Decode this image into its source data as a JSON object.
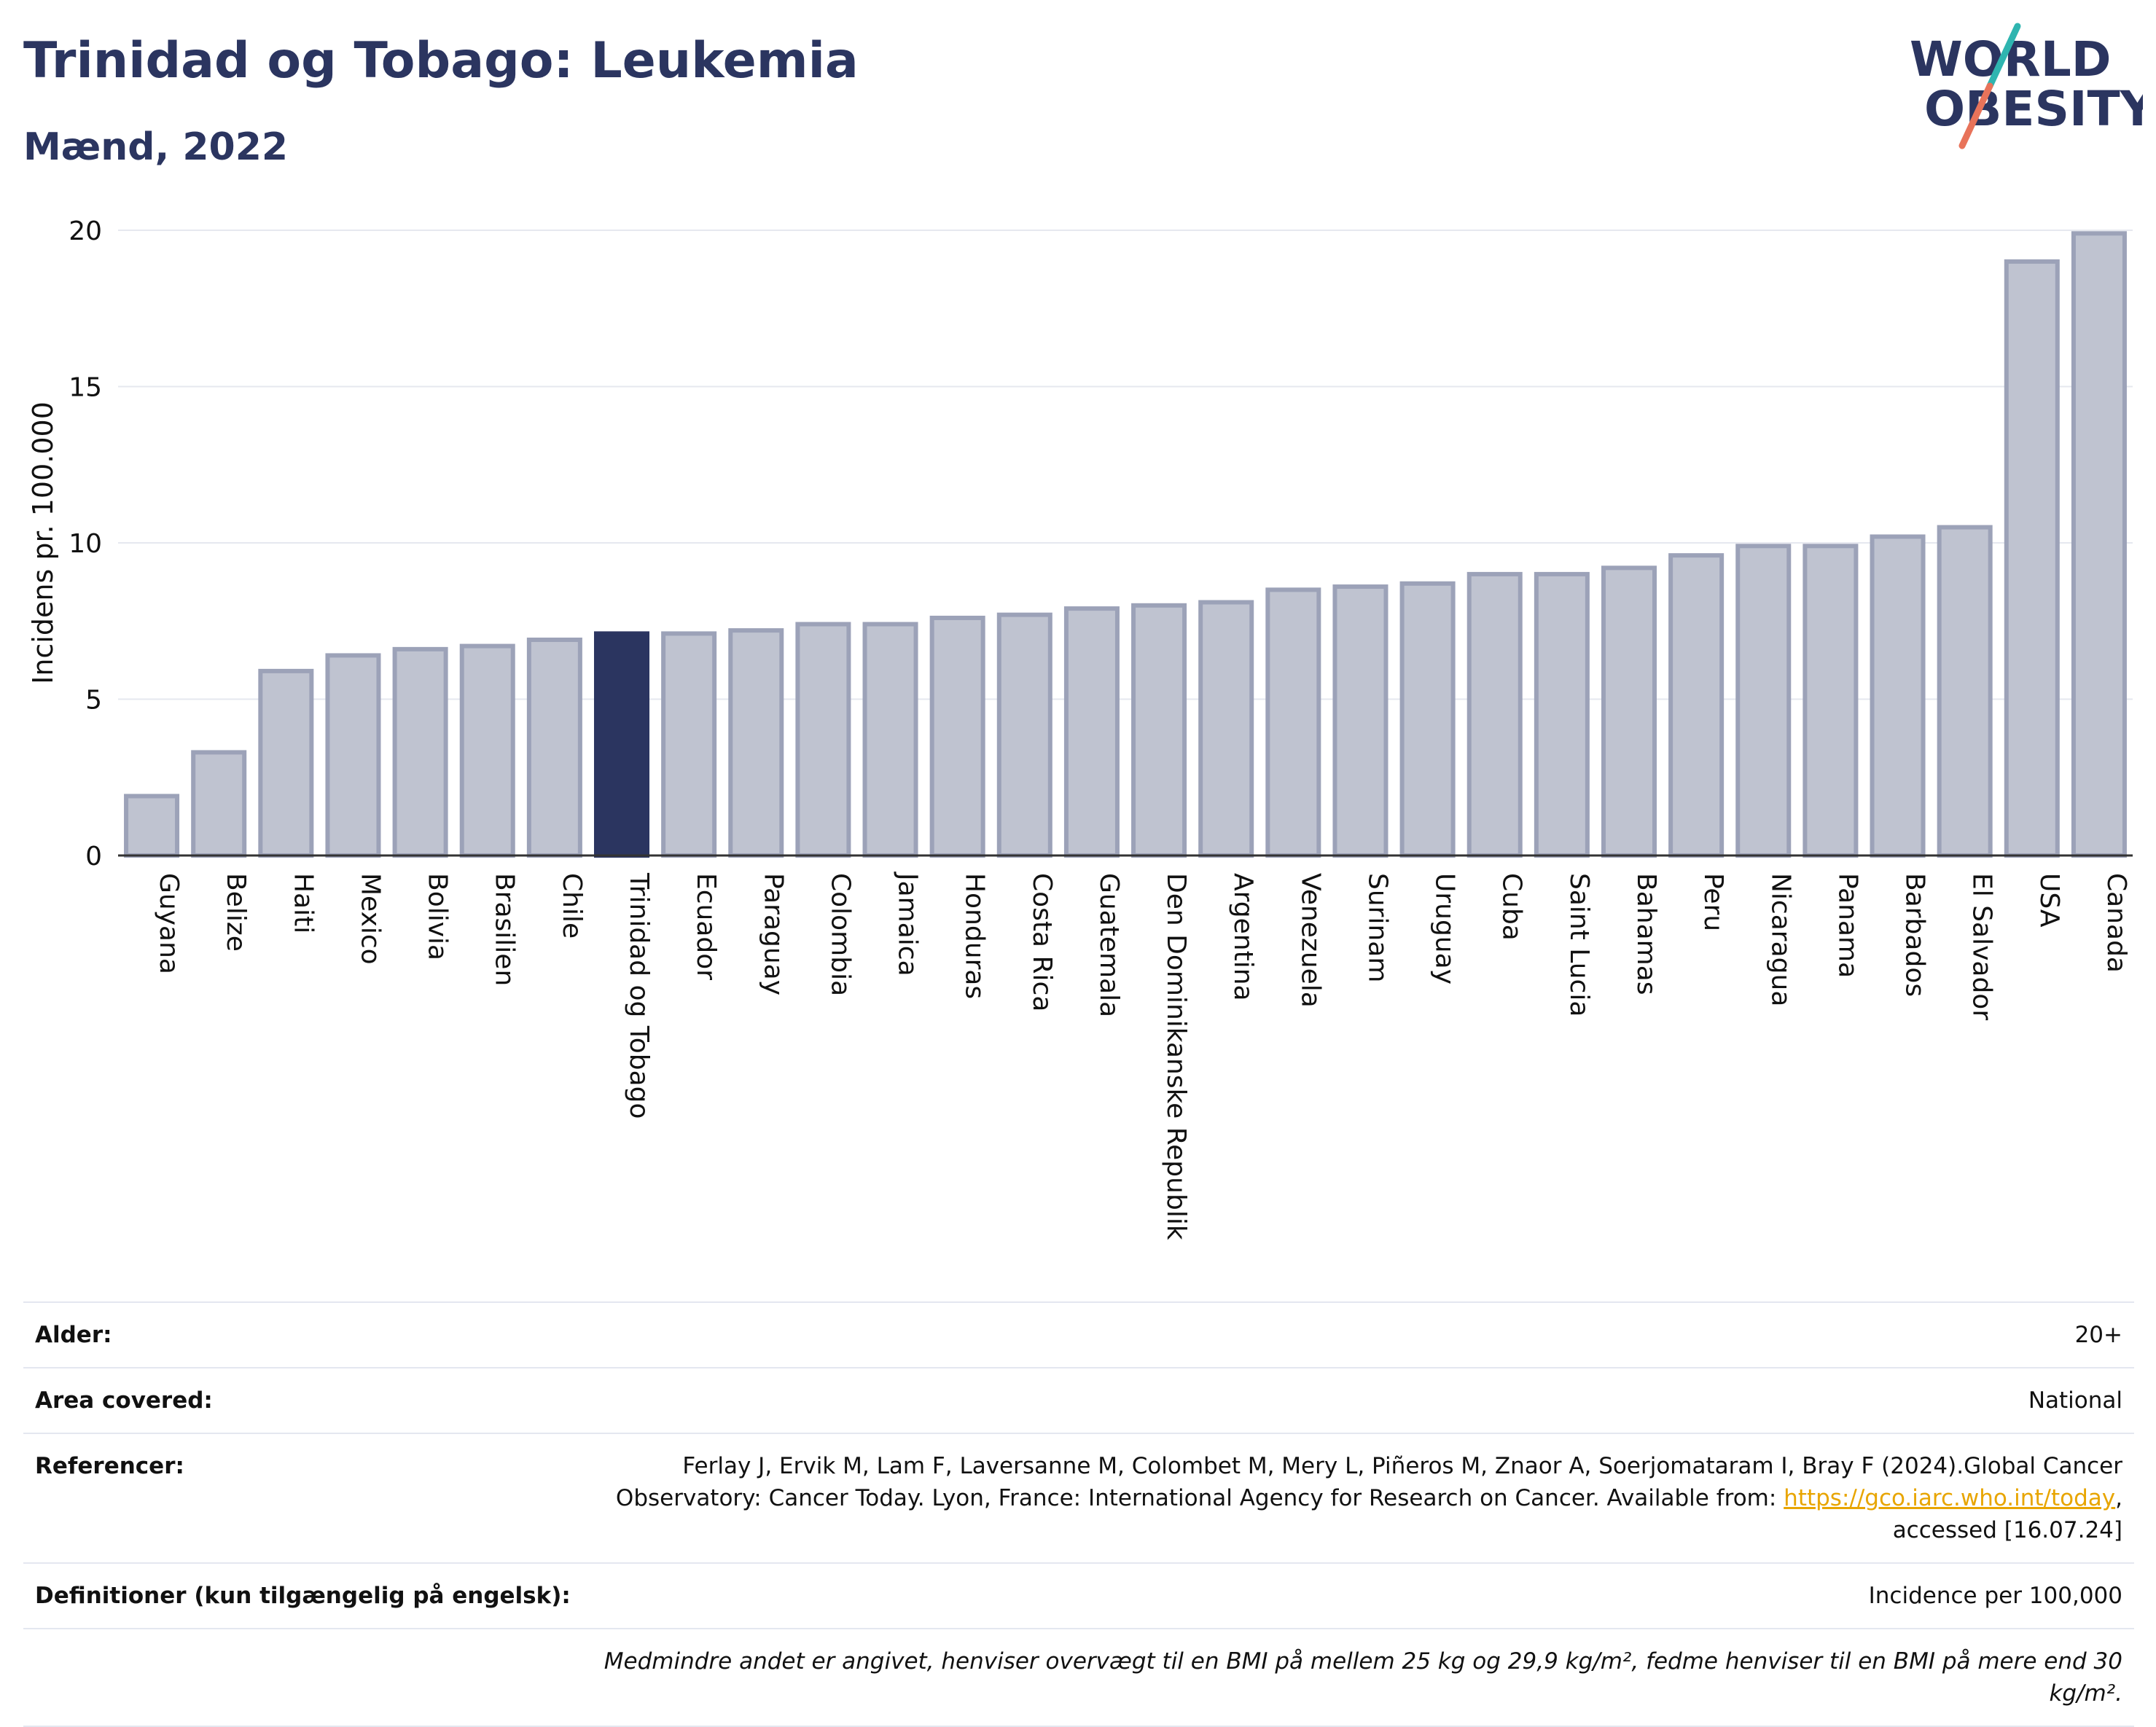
{
  "header": {
    "title": "Trinidad og Tobago: Leukemia",
    "subtitle": "Mænd, 2022",
    "logo_line1": "WORLD",
    "logo_line2": "OBESITY"
  },
  "colors": {
    "highlight": "#2b3560",
    "bar_fill": "#bfc3d0",
    "bar_stroke": "#9ca2b8",
    "title": "#2b3560",
    "logo_slash_top": "#2fb5b0",
    "logo_slash_bottom": "#e8735a"
  },
  "chart_data": {
    "type": "bar",
    "ylabel": "Incidens pr. 100.000",
    "xlabel": "",
    "ylim": [
      0,
      20
    ],
    "yticks": [
      0,
      5,
      10,
      15,
      20
    ],
    "grid": true,
    "highlight_category": "Trinidad og Tobago",
    "categories": [
      "Guyana",
      "Belize",
      "Haiti",
      "Mexico",
      "Bolivia",
      "Brasilien",
      "Chile",
      "Trinidad og Tobago",
      "Ecuador",
      "Paraguay",
      "Colombia",
      "Jamaica",
      "Honduras",
      "Costa Rica",
      "Guatemala",
      "Den Dominikanske Republik",
      "Argentina",
      "Venezuela",
      "Surinam",
      "Uruguay",
      "Cuba",
      "Saint Lucia",
      "Bahamas",
      "Peru",
      "Nicaragua",
      "Panama",
      "Barbados",
      "El Salvador",
      "USA",
      "Canada"
    ],
    "values": [
      1.9,
      3.3,
      5.9,
      6.4,
      6.6,
      6.7,
      6.9,
      7.1,
      7.1,
      7.2,
      7.4,
      7.4,
      7.6,
      7.7,
      7.9,
      8.0,
      8.1,
      8.5,
      8.6,
      8.7,
      9.0,
      9.0,
      9.2,
      9.6,
      9.9,
      9.9,
      10.2,
      10.5,
      19.0,
      19.9
    ]
  },
  "info": {
    "age_label": "Alder:",
    "age_value": "20+",
    "area_label": "Area covered:",
    "area_value": "National",
    "ref_label": "Referencer:",
    "ref_text_before": "Ferlay J, Ervik M, Lam F, Laversanne M, Colombet M, Mery L, Piñeros M, Znaor A, Soerjomataram I, Bray F (2024).Global Cancer Observatory: Cancer Today. Lyon, France: International Agency for Research on Cancer. Available from: ",
    "ref_link": "https://gco.iarc.who.int/today",
    "ref_text_after": ", accessed [16.07.24]",
    "def_label": "Definitioner (kun tilgængelig på engelsk):",
    "def_value": "Incidence per 100,000",
    "note": "Medmindre andet er angivet, henviser overvægt til en BMI på mellem 25 kg og 29,9 kg/m², fedme henviser til en BMI på mere end 30 kg/m²."
  }
}
